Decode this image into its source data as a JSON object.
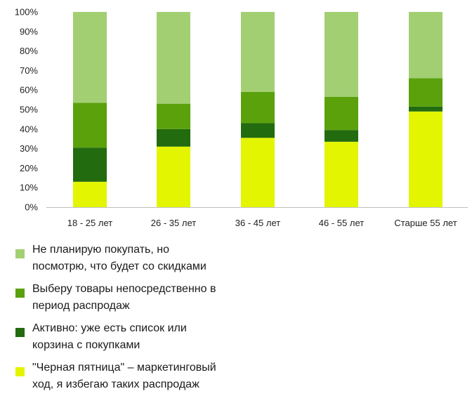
{
  "chart_data": {
    "type": "bar",
    "stacked": true,
    "categories": [
      "18 - 25 лет",
      "26 - 35 лет",
      "36 - 45 лет",
      "46 - 55 лет",
      "Старше 55 лет"
    ],
    "y_tick_labels": [
      "0%",
      "10%",
      "20%",
      "30%",
      "40%",
      "50%",
      "60%",
      "70%",
      "80%",
      "90%",
      "100%"
    ],
    "ylim": [
      0,
      100
    ],
    "grid": false,
    "legend_position": "bottom",
    "series": [
      {
        "name": "\"Черная пятница\" – маркетинговый ход, я избегаю таких распродаж",
        "color": "#e3f500",
        "values": [
          13,
          31,
          35.5,
          33.5,
          49
        ]
      },
      {
        "name": "Активно: уже есть список или корзина с покупками",
        "color": "#226b0e",
        "values": [
          17.5,
          9,
          7.5,
          6,
          2.5
        ]
      },
      {
        "name": "Выберу товары непосредственно в период распродаж",
        "color": "#5aa10c",
        "values": [
          23,
          13,
          16,
          17,
          14.5
        ]
      },
      {
        "name": "Не планирую покупать, но посмотрю, что будет со скидками",
        "color": "#a3cf73",
        "values": [
          46.5,
          47,
          41,
          43.5,
          34
        ]
      }
    ]
  },
  "legend": {
    "items": [
      {
        "text": "Не планирую покупать, но\nпосмотрю, что будет со скидками",
        "color": "#a3cf73"
      },
      {
        "text": "Выберу товары непосредственно в\nпериод распродаж",
        "color": "#5aa10c"
      },
      {
        "text": "Активно: уже есть список или\nкорзина с покупками",
        "color": "#226b0e"
      },
      {
        "text": "\"Черная пятница\" – маркетинговый\nход, я избегаю таких распродаж",
        "color": "#e3f500"
      }
    ]
  }
}
